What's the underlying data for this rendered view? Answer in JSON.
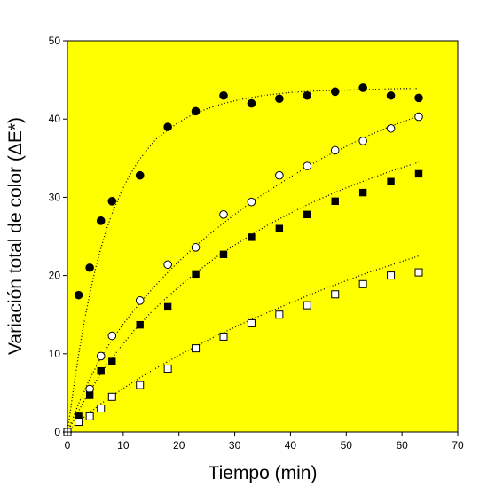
{
  "chart_data": {
    "type": "scatter",
    "title": "",
    "xlabel": "Tiempo (min)",
    "ylabel": "Variación total de color (ΔE*)",
    "xlim": [
      0,
      70
    ],
    "ylim": [
      0,
      50
    ],
    "xticks": [
      "0",
      "10",
      "20",
      "30",
      "40",
      "50",
      "60",
      "70"
    ],
    "yticks": [
      "0",
      "10",
      "20",
      "30",
      "40",
      "50"
    ],
    "grid": false,
    "legend": "none",
    "plot_background": "#ffff00",
    "series": [
      {
        "marker": "filled-circle",
        "x": [
          0,
          2,
          4,
          6,
          8,
          13,
          18,
          23,
          28,
          33,
          38,
          43,
          48,
          53,
          58,
          63
        ],
        "y": [
          0,
          17.5,
          21,
          27,
          29.5,
          32.8,
          39,
          41,
          43,
          42,
          42.6,
          43,
          43.5,
          44,
          43,
          42.7
        ],
        "fit_x": [
          0,
          1,
          2,
          3,
          4,
          5,
          6,
          7,
          8,
          9,
          10,
          11,
          12,
          13,
          14,
          15,
          16,
          18,
          20,
          22,
          25,
          28,
          31,
          35,
          40,
          45,
          50,
          55,
          60,
          63
        ],
        "fit_y": [
          0,
          5.1,
          9.9,
          14.1,
          17.6,
          20.8,
          23.5,
          25.9,
          27.9,
          29.6,
          31.2,
          32.6,
          33.8,
          34.9,
          35.8,
          36.7,
          37.5,
          38.6,
          39.6,
          40.4,
          41.3,
          42,
          42.5,
          43,
          43.4,
          43.6,
          43.7,
          43.8,
          43.9,
          43.9
        ]
      },
      {
        "marker": "open-circle",
        "x": [
          0,
          2,
          4,
          6,
          8,
          13,
          18,
          23,
          28,
          33,
          38,
          43,
          48,
          53,
          58,
          63
        ],
        "y": [
          0,
          1.5,
          5.5,
          9.7,
          12.3,
          16.8,
          21.4,
          23.6,
          27.8,
          29.4,
          32.8,
          34,
          36,
          37.2,
          38.8,
          40.3
        ],
        "fit_x": [
          0,
          2,
          4,
          6,
          8,
          10,
          13,
          16,
          18,
          20,
          23,
          26,
          28,
          30,
          33,
          36,
          38,
          40,
          43,
          46,
          48,
          50,
          53,
          56,
          58,
          60,
          63
        ],
        "fit_y": [
          0,
          3.6,
          6.8,
          9.5,
          11.8,
          13.8,
          16.5,
          18.9,
          20.4,
          21.8,
          23.8,
          25.6,
          26.7,
          27.8,
          29.4,
          30.8,
          31.7,
          32.6,
          33.9,
          35.1,
          35.8,
          36.5,
          37.6,
          38.5,
          39.1,
          39.6,
          40.4
        ]
      },
      {
        "marker": "filled-square",
        "x": [
          0,
          2,
          4,
          6,
          8,
          13,
          18,
          23,
          28,
          33,
          38,
          43,
          48,
          53,
          58,
          63
        ],
        "y": [
          0,
          2,
          4.7,
          7.8,
          9,
          13.7,
          16,
          20.2,
          22.7,
          24.9,
          26,
          27.8,
          29.5,
          30.6,
          32,
          33
        ],
        "fit_x": [
          0,
          3,
          6,
          9,
          12,
          15,
          18,
          21,
          24,
          27,
          30,
          33,
          36,
          39,
          42,
          45,
          48,
          51,
          54,
          57,
          60,
          63
        ],
        "fit_y": [
          0,
          4,
          7.5,
          10.4,
          13,
          15.3,
          17.3,
          19.2,
          20.9,
          22.5,
          23.9,
          25.2,
          26.5,
          27.6,
          28.7,
          29.7,
          30.6,
          31.5,
          32.3,
          33.1,
          33.8,
          34.5
        ]
      },
      {
        "marker": "open-square",
        "x": [
          0,
          2,
          4,
          6,
          8,
          13,
          18,
          23,
          28,
          33,
          38,
          43,
          48,
          53,
          58,
          63
        ],
        "y": [
          0,
          1.3,
          2,
          3,
          4.5,
          6,
          8.1,
          10.7,
          12.2,
          13.9,
          15,
          16.2,
          17.6,
          18.9,
          20,
          20.4
        ],
        "fit_x": [
          0,
          3,
          6,
          9,
          12,
          15,
          18,
          21,
          24,
          27,
          30,
          33,
          36,
          39,
          42,
          45,
          48,
          51,
          54,
          57,
          60,
          63
        ],
        "fit_y": [
          0,
          1.9,
          3.6,
          5.1,
          6.5,
          7.8,
          9,
          10.2,
          11.3,
          12.4,
          13.4,
          14.4,
          15.3,
          16.2,
          17.1,
          18,
          18.8,
          19.6,
          20.4,
          21.1,
          21.8,
          22.5
        ]
      }
    ]
  }
}
